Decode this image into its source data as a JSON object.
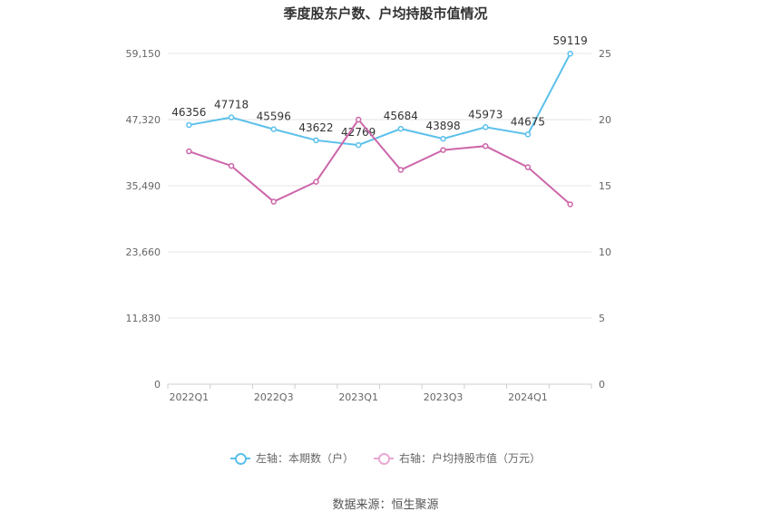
{
  "chart_data": {
    "type": "line",
    "title": "季度股东户数、户均持股市值情况",
    "categories": [
      "2022Q1",
      "2022Q2",
      "2022Q3",
      "2022Q4",
      "2023Q1",
      "2023Q2",
      "2023Q3",
      "2023Q4",
      "2024Q1",
      "2024Q2"
    ],
    "x_tick_labels": [
      "2022Q1",
      "",
      "2022Q3",
      "",
      "2023Q1",
      "",
      "2023Q3",
      "",
      "2024Q1",
      ""
    ],
    "y_left": {
      "min": 0,
      "max": 59150,
      "ticks": [
        "0",
        "11,830",
        "23,660",
        "35,490",
        "47,320",
        "59,150"
      ]
    },
    "y_right": {
      "min": 0,
      "max": 25,
      "ticks": [
        "0",
        "5",
        "10",
        "15",
        "20",
        "25"
      ]
    },
    "grid": true,
    "legend_position": "bottom",
    "series": [
      {
        "name": "左轴：本期数（户）",
        "axis": "left",
        "color": "#5bc0eb",
        "values": [
          46356,
          47718,
          45596,
          43622,
          42769,
          45684,
          43898,
          45973,
          44675,
          59119
        ],
        "labels": [
          "46356",
          "47718",
          "45596",
          "43622",
          "42769",
          "45684",
          "43898",
          "45973",
          "44675",
          "59119"
        ]
      },
      {
        "name": "右轴：户均持股市值（万元）",
        "axis": "right",
        "color": "#cc66aa",
        "values": [
          17.6,
          16.5,
          13.8,
          15.3,
          20.0,
          16.2,
          17.7,
          18.0,
          16.4,
          13.6
        ]
      }
    ]
  },
  "source": "数据来源：恒生聚源"
}
